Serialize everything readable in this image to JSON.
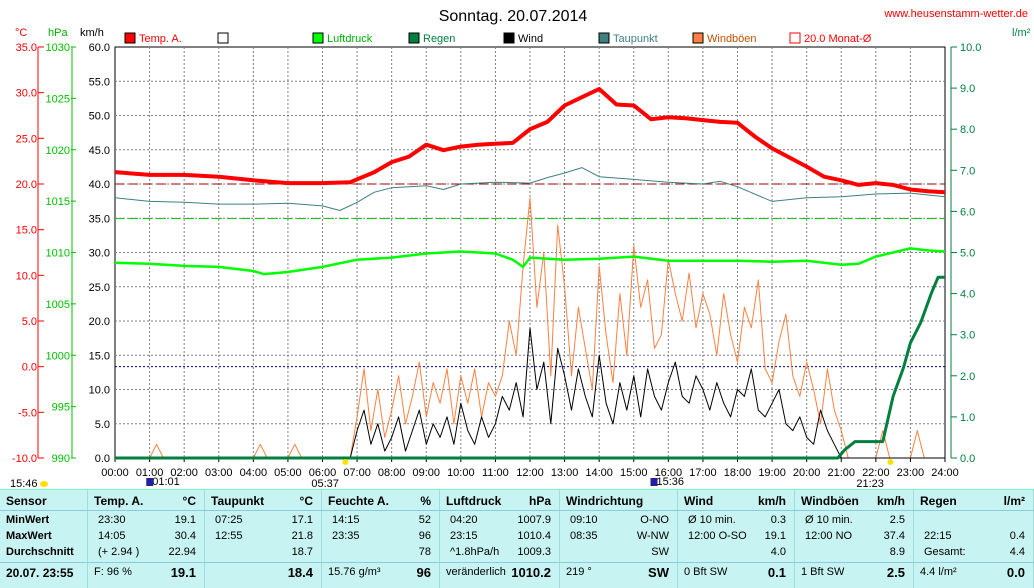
{
  "title": "Sonntag. 20.07.2014",
  "website": "www.heusenstamm-wetter.de",
  "axis_units": {
    "temp": "°C",
    "pressure": "hPa",
    "wind": "km/h",
    "rain": "l/m²"
  },
  "legend": [
    {
      "label": "Temp. A.",
      "color": "#ff0000"
    },
    {
      "label": "",
      "color": "#ffffff"
    },
    {
      "label": "Luftdruck",
      "color": "#00ff00"
    },
    {
      "label": "Regen",
      "color": "#007f3f"
    },
    {
      "label": "Wind",
      "color": "#000000"
    },
    {
      "label": "Taupunkt",
      "color": "#3f7f7f"
    },
    {
      "label": "Windböen",
      "color": "#ff8040"
    },
    {
      "label": "20.0 Monat-Ø",
      "color": "#ff0000"
    }
  ],
  "time_markers": [
    {
      "label": "15:46",
      "h": -0.6
    },
    {
      "label": "01:01",
      "h": 1.02
    },
    {
      "label": "05:37",
      "h": 5.62
    },
    {
      "label": "15:36",
      "h": 15.6
    },
    {
      "label": "21:23",
      "h": 21.38
    }
  ],
  "chart_data": {
    "type": "line",
    "x_ticks": [
      "00:00",
      "01:00",
      "02:00",
      "03:00",
      "04:00",
      "05:00",
      "06:00",
      "07:00",
      "08:00",
      "09:00",
      "10:00",
      "11:00",
      "12:00",
      "13:00",
      "14:00",
      "15:00",
      "16:00",
      "17:00",
      "18:00",
      "19:00",
      "20:00",
      "21:00",
      "22:00",
      "23:00",
      "24:00"
    ],
    "temp_ticks": [
      "35.0",
      "30.0",
      "25.0",
      "20.0",
      "15.0",
      "10.0",
      "5.0",
      "0.0",
      "-5.0",
      "-10.0"
    ],
    "pressure_ticks": [
      "1030",
      "1025",
      "1020",
      "1015",
      "1010",
      "1005",
      "1000",
      "995",
      "990"
    ],
    "wind_ticks": [
      "60.0",
      "55.0",
      "50.0",
      "45.0",
      "40.0",
      "35.0",
      "30.0",
      "25.0",
      "20.0",
      "15.0",
      "10.0",
      "5.0",
      "0.0"
    ],
    "rain_ticks": [
      "10.0",
      "9.0",
      "8.0",
      "7.0",
      "6.0",
      "5.0",
      "4.0",
      "3.0",
      "2.0",
      "1.0",
      "0.0"
    ],
    "temp_range": [
      -10,
      35
    ],
    "pressure_range": [
      990,
      1030
    ],
    "wind_range": [
      0,
      60
    ],
    "rain_range": [
      0,
      10
    ],
    "month_avg_temp": 20.0,
    "series": [
      {
        "name": "Temp. A.",
        "color": "#ff0000",
        "axis": "temp",
        "x": [
          0,
          1,
          2,
          3,
          4,
          5,
          6,
          6.8,
          7.5,
          8,
          8.5,
          9,
          9.5,
          10,
          10.5,
          11,
          11.5,
          12,
          12.5,
          13,
          13.5,
          14,
          14.5,
          15,
          15.5,
          16,
          16.5,
          17,
          17.5,
          18,
          18.5,
          19,
          19.5,
          20,
          20.5,
          21,
          21.5,
          22,
          22.5,
          23,
          23.5,
          24
        ],
        "y": [
          21.3,
          21.0,
          21.0,
          20.8,
          20.4,
          20.1,
          20.1,
          20.2,
          21.3,
          22.4,
          23.0,
          24.3,
          23.7,
          24.1,
          24.3,
          24.4,
          24.5,
          26.0,
          26.8,
          28.6,
          29.5,
          30.4,
          28.7,
          28.6,
          27.1,
          27.3,
          27.2,
          27.0,
          26.8,
          26.7,
          25.2,
          23.9,
          22.9,
          21.9,
          20.8,
          20.4,
          19.9,
          20.1,
          19.9,
          19.4,
          19.2,
          19.1
        ]
      },
      {
        "name": "Taupunkt",
        "color": "#3f7f7f",
        "axis": "temp",
        "x": [
          0,
          1,
          2,
          3,
          4,
          5,
          6,
          6.5,
          7,
          7.5,
          8,
          9,
          9.5,
          10,
          11,
          12,
          12.5,
          13,
          13.5,
          14,
          15,
          16,
          17,
          17.5,
          18,
          19,
          20,
          21,
          22,
          23,
          24
        ],
        "y": [
          18.5,
          18.1,
          18.0,
          17.8,
          17.8,
          17.9,
          17.6,
          17.1,
          18.0,
          19.1,
          19.6,
          19.8,
          19.4,
          20.0,
          20.2,
          20.1,
          20.7,
          21.2,
          21.8,
          20.8,
          20.5,
          20.2,
          20.0,
          20.3,
          19.7,
          18.1,
          18.5,
          18.6,
          18.9,
          19.0,
          18.6
        ]
      },
      {
        "name": "Luftdruck",
        "color": "#00ff00",
        "axis": "pressure",
        "x": [
          0,
          1,
          2,
          3,
          4,
          4.3,
          5,
          6,
          7,
          8,
          9,
          10,
          11,
          11.5,
          11.8,
          12,
          13,
          14,
          15,
          16,
          17,
          18,
          19,
          20,
          21,
          21.5,
          22,
          22.5,
          23,
          23.5,
          24
        ],
        "y": [
          1009.0,
          1008.9,
          1008.7,
          1008.6,
          1008.2,
          1007.9,
          1008.1,
          1008.6,
          1009.3,
          1009.5,
          1009.9,
          1010.1,
          1009.9,
          1009.3,
          1008.6,
          1009.5,
          1009.3,
          1009.4,
          1009.6,
          1009.2,
          1009.2,
          1009.2,
          1009.1,
          1009.2,
          1008.8,
          1008.9,
          1009.6,
          1010.0,
          1010.4,
          1010.2,
          1010.1
        ]
      },
      {
        "name": "Regen",
        "color": "#007f3f",
        "axis": "rain",
        "x": [
          0,
          20.9,
          21.1,
          21.4,
          22.0,
          22.2,
          22.5,
          22.8,
          23.0,
          23.3,
          23.6,
          23.8,
          24
        ],
        "y": [
          0,
          0,
          0.2,
          0.4,
          0.4,
          0.4,
          1.5,
          2.2,
          2.8,
          3.3,
          4.0,
          4.4,
          4.4
        ]
      },
      {
        "name": "Wind",
        "color": "#000000",
        "axis": "wind",
        "x": [
          0,
          6.8,
          7.0,
          7.2,
          7.4,
          7.6,
          7.8,
          8,
          8.2,
          8.4,
          8.6,
          8.8,
          9,
          9.2,
          9.4,
          9.6,
          9.8,
          10,
          10.2,
          10.4,
          10.6,
          10.8,
          11,
          11.2,
          11.4,
          11.6,
          11.8,
          12,
          12.2,
          12.4,
          12.6,
          12.8,
          13,
          13.2,
          13.4,
          13.6,
          13.8,
          14,
          14.2,
          14.4,
          14.6,
          14.8,
          15,
          15.2,
          15.4,
          15.6,
          15.8,
          16,
          16.2,
          16.4,
          16.6,
          16.8,
          17,
          17.2,
          17.4,
          17.6,
          17.8,
          18,
          18.2,
          18.4,
          18.6,
          18.8,
          19,
          19.2,
          19.4,
          19.6,
          19.8,
          20,
          20.2,
          20.4,
          20.6,
          20.8,
          21,
          24
        ],
        "y": [
          0,
          0,
          4,
          7,
          2,
          5,
          1,
          3,
          6,
          1,
          4,
          7,
          2,
          5,
          3,
          6,
          2,
          8,
          4,
          2,
          6,
          3,
          5,
          9,
          7,
          11,
          6,
          19,
          10,
          14,
          5,
          16,
          12,
          7,
          13,
          9,
          6,
          15,
          8,
          5,
          11,
          7,
          12,
          6,
          13,
          9,
          7,
          11,
          14,
          9,
          8,
          12,
          10,
          7,
          11,
          8,
          6,
          10,
          9,
          13,
          7,
          6,
          8,
          10,
          5,
          4,
          6,
          3,
          2,
          7,
          4,
          2,
          0,
          0
        ]
      },
      {
        "name": "Windböen",
        "color": "#ff8040",
        "axis": "wind",
        "x": [
          0,
          1,
          1.2,
          1.4,
          4,
          4.2,
          4.4,
          5,
          5.2,
          5.4,
          6.8,
          7,
          7.2,
          7.4,
          7.6,
          7.8,
          8,
          8.2,
          8.4,
          8.6,
          8.8,
          9,
          9.2,
          9.4,
          9.6,
          9.8,
          10,
          10.2,
          10.4,
          10.6,
          10.8,
          11,
          11.2,
          11.4,
          11.6,
          11.8,
          12,
          12.2,
          12.4,
          12.6,
          12.8,
          13,
          13.2,
          13.4,
          13.6,
          13.8,
          14,
          14.2,
          14.4,
          14.6,
          14.8,
          15,
          15.2,
          15.4,
          15.6,
          15.8,
          16,
          16.2,
          16.4,
          16.6,
          16.8,
          17,
          17.2,
          17.4,
          17.6,
          17.8,
          18,
          18.2,
          18.4,
          18.6,
          18.8,
          19,
          19.2,
          19.4,
          19.6,
          19.8,
          20,
          20.2,
          20.4,
          20.6,
          20.8,
          21,
          21.2,
          22,
          22.2,
          22.4,
          23,
          23.2,
          23.4,
          24
        ],
        "y": [
          0,
          0,
          2,
          0,
          0,
          2,
          0,
          0,
          2,
          0,
          0,
          6,
          13,
          4,
          10,
          3,
          7,
          12,
          5,
          9,
          14,
          6,
          11,
          8,
          13,
          5,
          12,
          8,
          13,
          6,
          11,
          9,
          12,
          20,
          15,
          28,
          38,
          22,
          30,
          12,
          34,
          25,
          12,
          22,
          16,
          10,
          28,
          18,
          11,
          24,
          15,
          31,
          22,
          26,
          16,
          18,
          29,
          24,
          20,
          27,
          19,
          24,
          21,
          15,
          24,
          18,
          14,
          22,
          19,
          26,
          13,
          11,
          17,
          21,
          12,
          9,
          14,
          10,
          5,
          13,
          7,
          4,
          0,
          0,
          4,
          0,
          0,
          4,
          0,
          0
        ]
      }
    ]
  },
  "panel": {
    "columns": [
      {
        "header": "Sensor",
        "unit": "",
        "rows": [
          [
            "MinWert",
            ""
          ],
          [
            "MaxWert",
            ""
          ],
          [
            "Durchschnitt",
            ""
          ]
        ],
        "footer": [
          "20.07. 23:55",
          ""
        ]
      },
      {
        "header": "Temp. A.",
        "unit": "°C",
        "rows": [
          [
            "23:30",
            "19.1"
          ],
          [
            "14:05",
            "30.4"
          ],
          [
            "(+ 2.94 )",
            "22.94"
          ]
        ],
        "footer": [
          "F: 96 %",
          "19.1"
        ]
      },
      {
        "header": "Taupunkt",
        "unit": "°C",
        "rows": [
          [
            "07:25",
            "17.1"
          ],
          [
            "12:55",
            "21.8"
          ],
          [
            "",
            "18.7"
          ]
        ],
        "footer": [
          "",
          "18.4"
        ]
      },
      {
        "header": "Feuchte A.",
        "unit": "%",
        "rows": [
          [
            "14:15",
            "52"
          ],
          [
            "23:35",
            "96"
          ],
          [
            "",
            "78"
          ]
        ],
        "footer": [
          "15.76 g/m³",
          "96"
        ]
      },
      {
        "header": "Luftdruck",
        "unit": "hPa",
        "rows": [
          [
            "04:20",
            "1007.9"
          ],
          [
            "23:15",
            "1010.4"
          ],
          [
            "^1.8hPa/h",
            "1009.3"
          ]
        ],
        "footer": [
          "veränderlich",
          "1010.2"
        ]
      },
      {
        "header": "Windrichtung",
        "unit": "",
        "rows": [
          [
            "09:10",
            "O-NO"
          ],
          [
            "08:35",
            "W-NW"
          ],
          [
            "",
            "SW"
          ]
        ],
        "footer": [
          "219 °",
          "SW"
        ]
      },
      {
        "header": "Wind",
        "unit": "km/h",
        "rows": [
          [
            "Ø 10 min.",
            "0.3"
          ],
          [
            "12:00 O-SO",
            "19.1"
          ],
          [
            "",
            "4.0"
          ]
        ],
        "footer": [
          "0 Bft SW",
          "0.1"
        ]
      },
      {
        "header": "Windböen",
        "unit": "km/h",
        "rows": [
          [
            "Ø 10 min.",
            "2.5"
          ],
          [
            "12:00 NO",
            "37.4"
          ],
          [
            "",
            "8.9"
          ]
        ],
        "footer": [
          "1 Bft SW",
          "2.5"
        ]
      },
      {
        "header": "Regen",
        "unit": "l/m²",
        "rows": [
          [
            "",
            ""
          ],
          [
            "22:15",
            "0.4"
          ],
          [
            "Gesamt:",
            "4.4"
          ]
        ],
        "footer": [
          "4.4 l/m²",
          "0.0"
        ]
      }
    ]
  }
}
